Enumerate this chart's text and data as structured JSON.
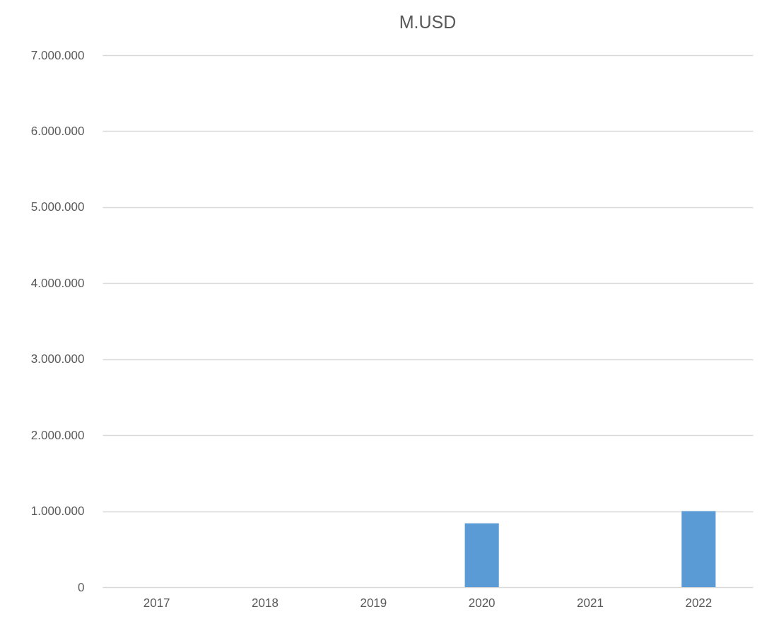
{
  "chart_data": {
    "type": "bar",
    "title": "M.USD",
    "categories": [
      "2017",
      "2018",
      "2019",
      "2020",
      "2021",
      "2022"
    ],
    "values": [
      null,
      null,
      null,
      840000,
      null,
      1000000
    ],
    "color": "#5b9bd5",
    "ylim": [
      0,
      7000000
    ],
    "yticks": [
      0,
      {
        "value": 1000000,
        "label": "1.000.000"
      },
      {
        "value": 2000000,
        "label": "2.000.000"
      },
      {
        "value": 3000000,
        "label": "3.000.000"
      },
      {
        "value": 4000000,
        "label": "4.000.000"
      },
      {
        "value": 5000000,
        "label": "5.000.000"
      },
      {
        "value": 6000000,
        "label": "6.000.000"
      },
      {
        "value": 7000000,
        "label": "7.000.000"
      }
    ],
    "grid": "y"
  }
}
